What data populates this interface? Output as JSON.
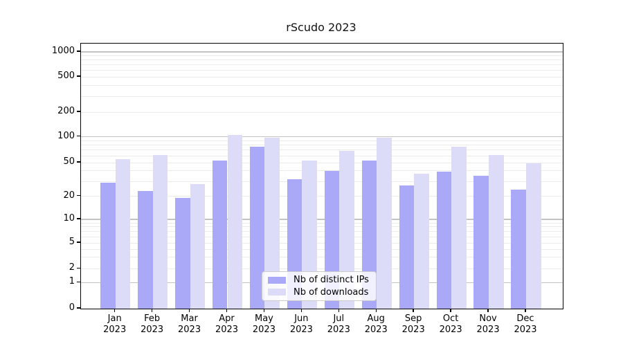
{
  "title": "rScudo 2023",
  "chart_data": {
    "type": "bar",
    "title": "rScudo 2023",
    "categories": [
      "Jan 2023",
      "Feb 2023",
      "Mar 2023",
      "Apr 2023",
      "May 2023",
      "Jun 2023",
      "Jul 2023",
      "Aug 2023",
      "Sep 2023",
      "Oct 2023",
      "Nov 2023",
      "Dec 2023"
    ],
    "series": [
      {
        "name": "Nb of distinct IPs",
        "color": "#a9a9f7",
        "values": [
          29,
          23,
          19,
          53,
          76,
          32,
          40,
          53,
          27,
          39,
          35,
          24
        ]
      },
      {
        "name": "Nb of downloads",
        "color": "#dcdcf8",
        "values": [
          55,
          61,
          28,
          105,
          97,
          53,
          68,
          97,
          37,
          76,
          61,
          49
        ]
      }
    ],
    "yscale": "pseudo-log",
    "yticks": [
      0,
      1,
      2,
      5,
      10,
      20,
      50,
      100,
      200,
      500,
      1000
    ],
    "ylim": [
      0,
      1250
    ],
    "xlabel": "",
    "ylabel": "",
    "grid": true,
    "legend_position": "lower center"
  },
  "legend": {
    "items": [
      {
        "label": "Nb of distinct IPs",
        "color": "#a9a9f7"
      },
      {
        "label": "Nb of downloads",
        "color": "#dcdcf8"
      }
    ]
  },
  "colors": {
    "major_grid": "#c3c3c3",
    "minor_grid": "#eaeaea",
    "spine": "#000000",
    "background": "#ffffff"
  }
}
